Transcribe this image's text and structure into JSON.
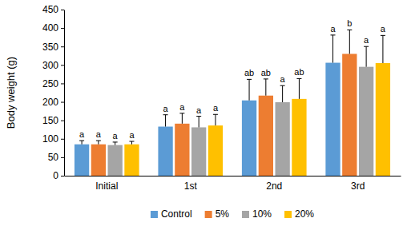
{
  "chart_data": {
    "type": "bar",
    "y_label": "Body weight (g)",
    "categories": [
      "Initial",
      "1st",
      "2nd",
      "3rd"
    ],
    "series": [
      {
        "name": "Control",
        "color": "#5b9bd5",
        "values": [
          85,
          133,
          204,
          306
        ],
        "errors": [
          10,
          32,
          57,
          75
        ],
        "letters": [
          "a",
          "a",
          "ab",
          "a"
        ]
      },
      {
        "name": "5%",
        "color": "#ed7d31",
        "values": [
          85,
          141,
          217,
          330
        ],
        "errors": [
          10,
          28,
          45,
          65
        ],
        "letters": [
          "a",
          "a",
          "ab",
          "b"
        ]
      },
      {
        "name": "10%",
        "color": "#a5a5a5",
        "values": [
          83,
          131,
          199,
          295
        ],
        "errors": [
          8,
          30,
          45,
          55
        ],
        "letters": [
          "a",
          "a",
          "a",
          "a"
        ]
      },
      {
        "name": "20%",
        "color": "#ffc000",
        "values": [
          85,
          136,
          208,
          305
        ],
        "errors": [
          8,
          30,
          55,
          75
        ],
        "letters": [
          "a",
          "a",
          "ab",
          "a"
        ]
      }
    ],
    "ylim": [
      0,
      450
    ],
    "yticks": [
      0,
      50,
      100,
      150,
      200,
      250,
      300,
      350,
      400,
      450
    ],
    "grid": false,
    "legend": "bottom"
  }
}
